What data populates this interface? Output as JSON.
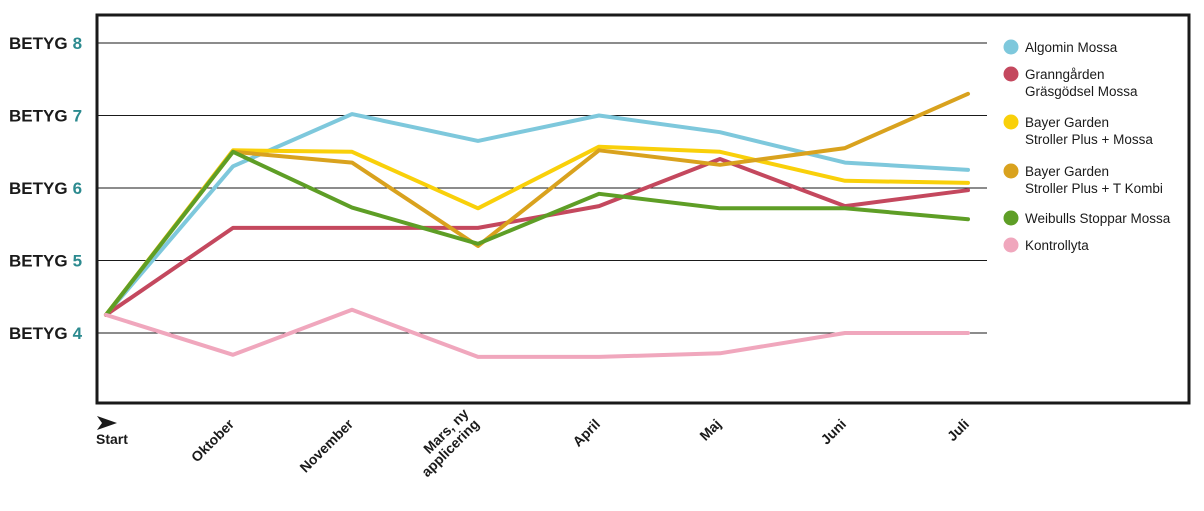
{
  "chart_data": {
    "type": "line",
    "categories": [
      "Start",
      "Oktober",
      "November",
      "Mars, ny applicering",
      "April",
      "Maj",
      "Juni",
      "Juli"
    ],
    "category_lines": [
      [
        "Start"
      ],
      [
        "Oktober"
      ],
      [
        "November"
      ],
      [
        "Mars, ny",
        "applicering"
      ],
      [
        "April"
      ],
      [
        "Maj"
      ],
      [
        "Juni"
      ],
      [
        "Juli"
      ]
    ],
    "y_ticks": [
      {
        "prefix": "BETYG",
        "num": "8",
        "value": 8
      },
      {
        "prefix": "BETYG",
        "num": "7",
        "value": 7
      },
      {
        "prefix": "BETYG",
        "num": "6",
        "value": 6
      },
      {
        "prefix": "BETYG",
        "num": "5",
        "value": 5
      },
      {
        "prefix": "BETYG",
        "num": "4",
        "value": 4
      }
    ],
    "ylim": [
      3,
      8.4
    ],
    "grid": true,
    "legend_position": "right",
    "series": [
      {
        "name": "Algomin Mossa",
        "label_lines": [
          "Algomin Mossa"
        ],
        "color": "#7ec8dc",
        "values": [
          4.25,
          6.3,
          7.02,
          6.65,
          7.0,
          6.77,
          6.35,
          6.25
        ]
      },
      {
        "name": "Granngården Gräsgödsel Mossa",
        "label_lines": [
          "Granngården",
          "Gräsgödsel Mossa"
        ],
        "color": "#c4485e",
        "values": [
          4.25,
          5.45,
          5.45,
          5.45,
          5.75,
          6.4,
          5.75,
          5.97
        ]
      },
      {
        "name": "Bayer Garden Stroller Plus + Mossa",
        "label_lines": [
          "Bayer Garden",
          "Stroller Plus + Mossa"
        ],
        "color": "#f9d00a",
        "values": [
          4.25,
          6.52,
          6.5,
          5.72,
          6.57,
          6.5,
          6.1,
          6.07
        ]
      },
      {
        "name": "Bayer Garden Stroller Plus + T Kombi",
        "label_lines": [
          "Bayer Garden",
          "Stroller Plus + T Kombi"
        ],
        "color": "#d9a21e",
        "values": [
          4.25,
          6.5,
          6.35,
          5.2,
          6.52,
          6.32,
          6.55,
          7.3
        ]
      },
      {
        "name": "Weibulls Stoppar Mossa",
        "label_lines": [
          "Weibulls Stoppar Mossa"
        ],
        "color": "#5e9e26",
        "values": [
          4.25,
          6.5,
          5.73,
          5.23,
          5.92,
          5.72,
          5.72,
          5.57
        ]
      },
      {
        "name": "Kontrollyta",
        "label_lines": [
          "Kontrollyta"
        ],
        "color": "#f0a7bd",
        "values": [
          4.25,
          3.7,
          4.32,
          3.67,
          3.67,
          3.72,
          4.0,
          4.0
        ]
      }
    ]
  }
}
